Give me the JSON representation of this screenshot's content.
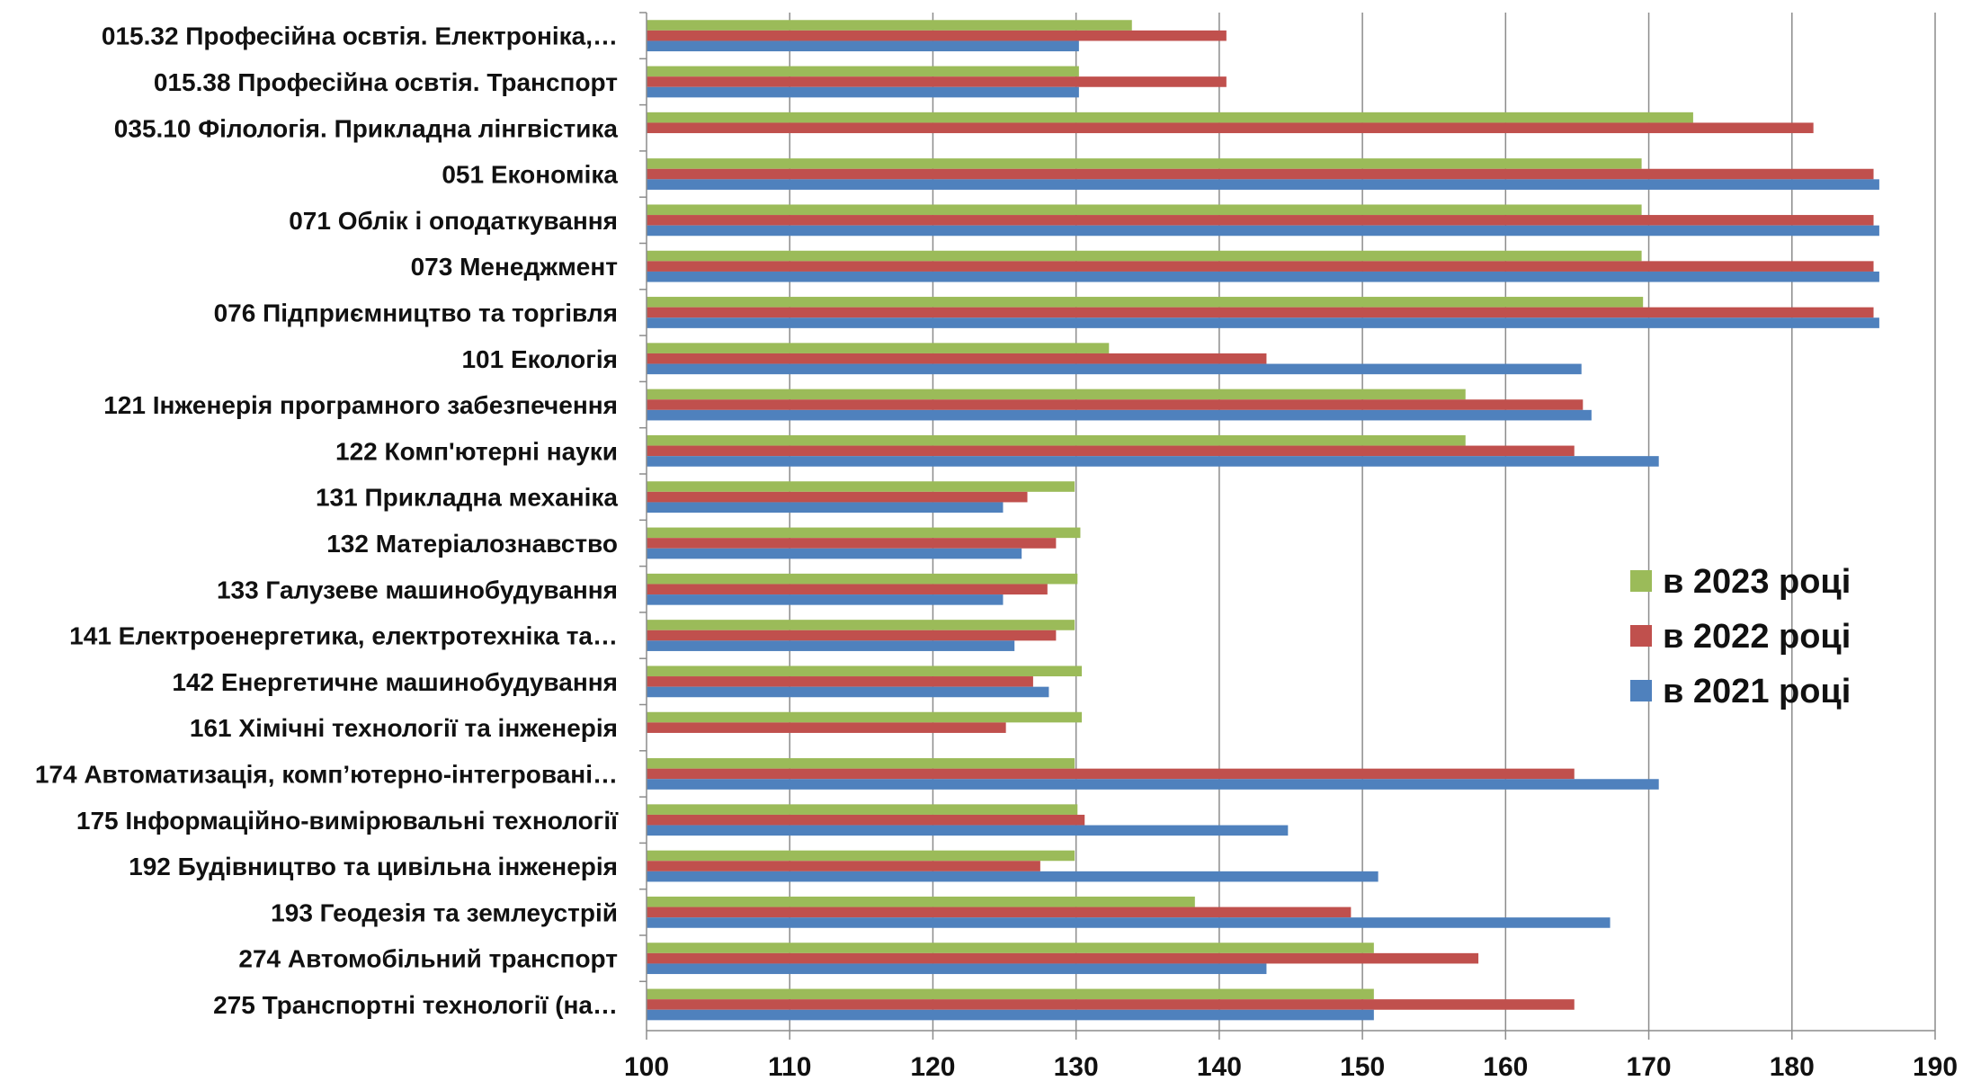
{
  "chart_data": {
    "type": "bar",
    "orientation": "horizontal",
    "categories": [
      "015.32 Професійна освтія. Електроніка,…",
      "015.38 Професійна освтія. Транспорт",
      "035.10 Філологія. Прикладна лінгвістика",
      "051 Економіка",
      "071 Облік і оподаткування",
      "073 Менеджмент",
      "076 Підприємництво та торгівля",
      "101 Екологія",
      "121 Інженерія програмного забезпечення",
      "122 Комп'ютерні науки",
      "131 Прикладна механіка",
      "132 Матеріалознавство",
      "133 Галузеве машинобудування",
      "141 Електроенергетика, електротехніка та…",
      "142 Енергетичне машинобудування",
      "161 Хімічні технології та інженерія",
      "174 Автоматизація, комп’ютерно-інтегровані…",
      "175 Інформаційно-вимірювальні технології",
      "192 Будівництво та цивільна інженерія",
      "193 Геодезія та землеустрій",
      "274 Автомобільний транспорт",
      "275 Транспортні технології (на…"
    ],
    "series": [
      {
        "name": "в 2023 році",
        "color": "#9bbb59",
        "values": [
          133.9,
          130.2,
          173.1,
          169.5,
          169.5,
          169.5,
          169.6,
          132.3,
          157.2,
          157.2,
          129.9,
          130.3,
          130.1,
          129.9,
          130.4,
          130.4,
          129.9,
          130.1,
          129.9,
          138.3,
          150.8,
          150.8
        ]
      },
      {
        "name": "в 2022 році",
        "color": "#c0504d",
        "values": [
          140.5,
          140.5,
          181.5,
          185.7,
          185.7,
          185.7,
          185.7,
          143.3,
          165.4,
          164.8,
          126.6,
          128.6,
          128.0,
          128.6,
          127.0,
          125.1,
          164.8,
          130.6,
          127.5,
          149.2,
          158.1,
          164.8
        ]
      },
      {
        "name": "в 2021 році",
        "color": "#4f81bd",
        "values": [
          130.2,
          130.2,
          null,
          186.1,
          186.1,
          186.1,
          186.1,
          165.3,
          166.0,
          170.7,
          124.9,
          126.2,
          124.9,
          125.7,
          128.1,
          null,
          170.7,
          144.8,
          151.1,
          167.3,
          143.3,
          150.8
        ]
      }
    ],
    "xlim": [
      100,
      190
    ],
    "xticks": [
      "100",
      "110",
      "120",
      "130",
      "140",
      "150",
      "160",
      "170",
      "180",
      "190"
    ],
    "grid": "vertical",
    "legend_position": "right"
  }
}
